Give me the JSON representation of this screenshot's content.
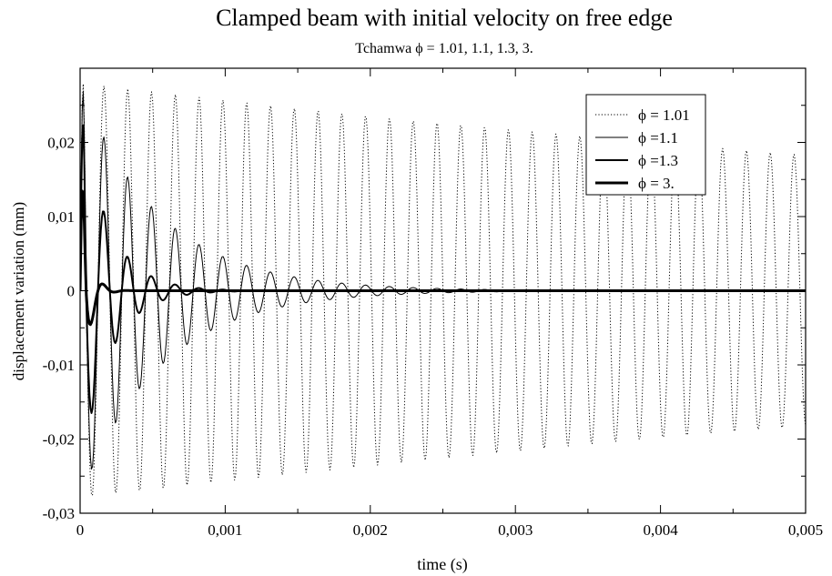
{
  "chart_data": {
    "type": "line",
    "title": "Clamped beam with initial velocity on free edge",
    "subtitle": "Tchamwa ϕ = 1.01, 1.1, 1.3, 3.",
    "xlabel": "time (s)",
    "ylabel": "displacement variation (mm)",
    "xlim": [
      0,
      0.005
    ],
    "ylim": [
      -0.03,
      0.03
    ],
    "x_ticks": [
      0,
      0.001,
      0.002,
      0.003,
      0.004,
      0.005
    ],
    "x_tick_labels": [
      "0",
      "0,001",
      "0,002",
      "0,003",
      "0,004",
      "0,005"
    ],
    "y_ticks": [
      -0.03,
      -0.02,
      -0.01,
      0,
      0.01,
      0.02
    ],
    "y_tick_labels": [
      "-0,03",
      "-0,02",
      "-0,01",
      "0",
      "0,01",
      "0,02"
    ],
    "grid": false,
    "legend_position": "top-right",
    "oscillation_period": 0.000164,
    "samples_per_series": 700,
    "series": [
      {
        "name": "ϕ = 1.01",
        "style": "dotted",
        "color": "#000000",
        "amplitude": 0.028,
        "decay": 0.014,
        "phase_offset": 0.0
      },
      {
        "name": "ϕ =1.1",
        "style": "solid-thin",
        "color": "#000000",
        "amplitude": 0.028,
        "decay": 0.3,
        "phase_offset": 0.0
      },
      {
        "name": "ϕ =1.3",
        "style": "solid-medium",
        "color": "#000000",
        "amplitude": 0.025,
        "decay": 0.85,
        "phase_offset": 0.0
      },
      {
        "name": "ϕ = 3.",
        "style": "solid-thick",
        "color": "#000000",
        "amplitude": 0.02,
        "decay": 3.2,
        "phase_offset": 0.0
      }
    ]
  }
}
